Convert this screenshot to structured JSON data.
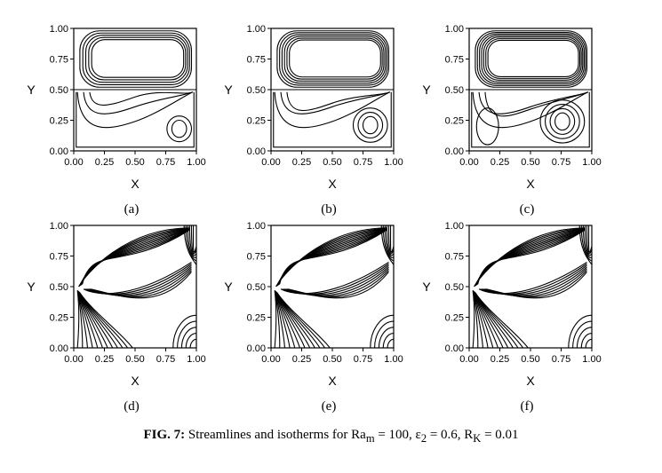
{
  "axes": {
    "xlabel": "X",
    "ylabel": "Y",
    "ticks": [
      "0.00",
      "0.25",
      "0.50",
      "0.75",
      "1.00"
    ]
  },
  "panels": [
    {
      "id": "a",
      "label": "(a)",
      "kind": "streamlines"
    },
    {
      "id": "b",
      "label": "(b)",
      "kind": "streamlines"
    },
    {
      "id": "c",
      "label": "(c)",
      "kind": "streamlines"
    },
    {
      "id": "d",
      "label": "(d)",
      "kind": "isotherms"
    },
    {
      "id": "e",
      "label": "(e)",
      "kind": "isotherms"
    },
    {
      "id": "f",
      "label": "(f)",
      "kind": "isotherms"
    }
  ],
  "caption": {
    "prefix": "FIG. 7:",
    "text": " Streamlines and isotherms for Ra",
    "sub_m": "m",
    "eq1": " = 100, ε",
    "sub_2": "2",
    "eq2": " = 0.6, R",
    "sub_K": "K",
    "eq3": " = 0.01"
  }
}
